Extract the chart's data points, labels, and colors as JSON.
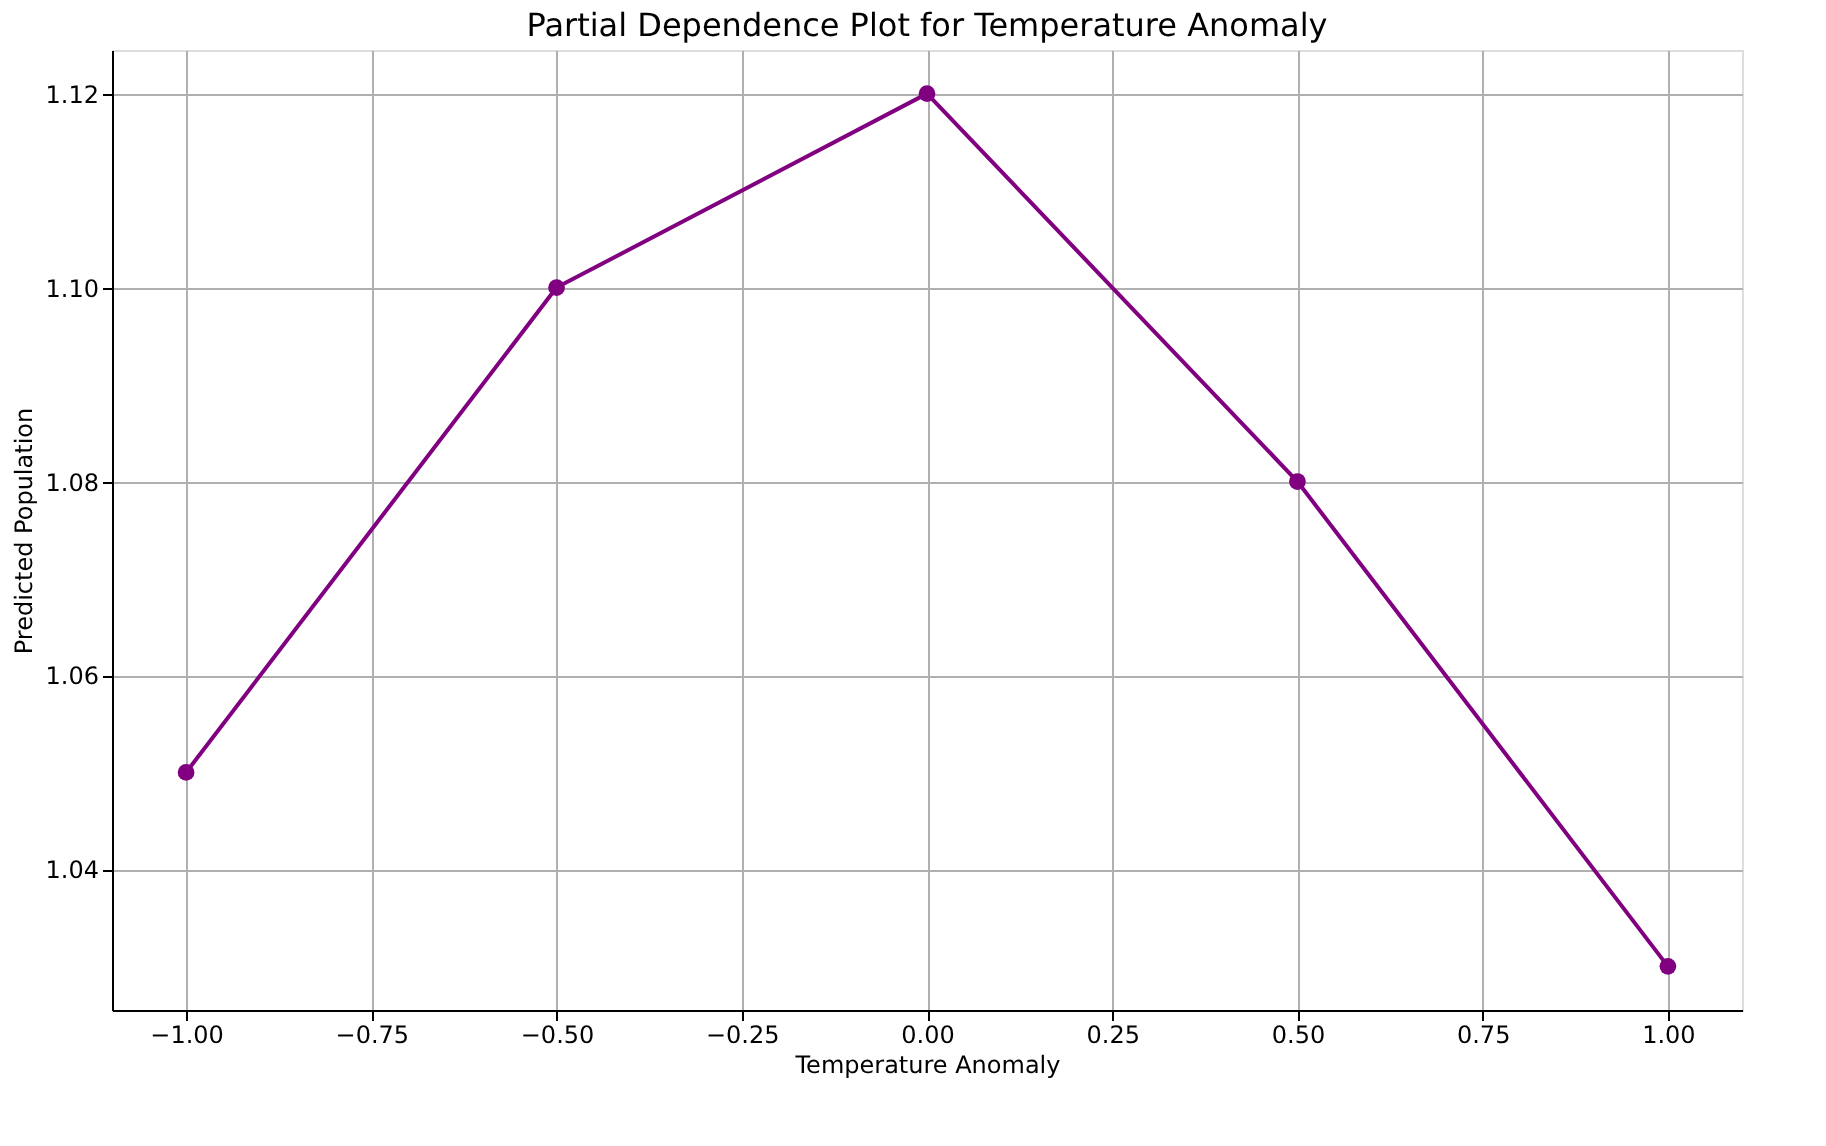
{
  "chart_data": {
    "type": "line",
    "title": "Partial Dependence Plot for Temperature Anomaly",
    "xlabel": "Temperature Anomaly",
    "ylabel": "Predicted Population",
    "x": [
      -1.0,
      -0.5,
      0.0,
      0.5,
      1.0
    ],
    "series": [
      {
        "color": "#800080",
        "values": [
          1.05,
          1.1,
          1.12,
          1.08,
          1.03
        ]
      }
    ],
    "xlim": [
      -1.1,
      1.1
    ],
    "ylim": [
      1.0255,
      1.1245
    ],
    "xticks": [
      {
        "value": -1.0,
        "label": "−1.00"
      },
      {
        "value": -0.75,
        "label": "−0.75"
      },
      {
        "value": -0.5,
        "label": "−0.50"
      },
      {
        "value": -0.25,
        "label": "−0.25"
      },
      {
        "value": 0.0,
        "label": "0.00"
      },
      {
        "value": 0.25,
        "label": "0.25"
      },
      {
        "value": 0.5,
        "label": "0.50"
      },
      {
        "value": 0.75,
        "label": "0.75"
      },
      {
        "value": 1.0,
        "label": "1.00"
      }
    ],
    "yticks": [
      {
        "value": 1.04,
        "label": "1.04"
      },
      {
        "value": 1.06,
        "label": "1.06"
      },
      {
        "value": 1.08,
        "label": "1.08"
      },
      {
        "value": 1.1,
        "label": "1.10"
      },
      {
        "value": 1.12,
        "label": "1.12"
      }
    ],
    "grid": true,
    "marker": "circle",
    "line_style": "solid"
  }
}
